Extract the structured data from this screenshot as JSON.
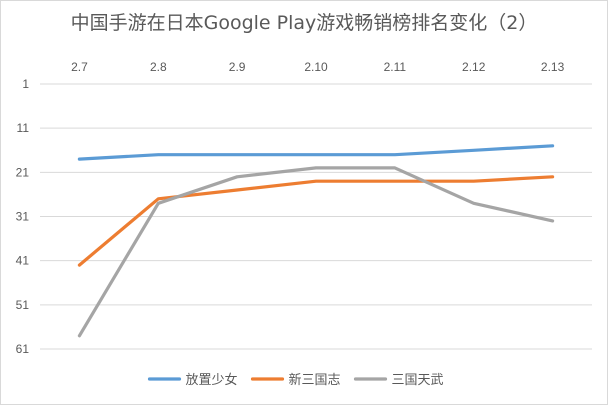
{
  "chart_data": {
    "type": "line",
    "title": "中国手游在日本Google Play游戏畅销榜排名变化（2）",
    "categories": [
      "2.7",
      "2.8",
      "2.9",
      "2.10",
      "2.11",
      "2.12",
      "2.13"
    ],
    "y_ticks": [
      "1",
      "11",
      "21",
      "31",
      "41",
      "51",
      "61"
    ],
    "ylim": [
      1,
      61
    ],
    "y_reversed": true,
    "x_axis_position": "top",
    "grid": true,
    "legend_position": "bottom",
    "series": [
      {
        "name": "放置少女",
        "color": "#5b9bd5",
        "values": [
          18,
          17,
          17,
          17,
          17,
          16,
          15
        ]
      },
      {
        "name": "新三国志",
        "color": "#ed7d31",
        "values": [
          42,
          27,
          25,
          23,
          23,
          23,
          22
        ]
      },
      {
        "name": "三国天武",
        "color": "#a5a5a5",
        "values": [
          58,
          28,
          22,
          20,
          20,
          28,
          32
        ]
      }
    ]
  }
}
